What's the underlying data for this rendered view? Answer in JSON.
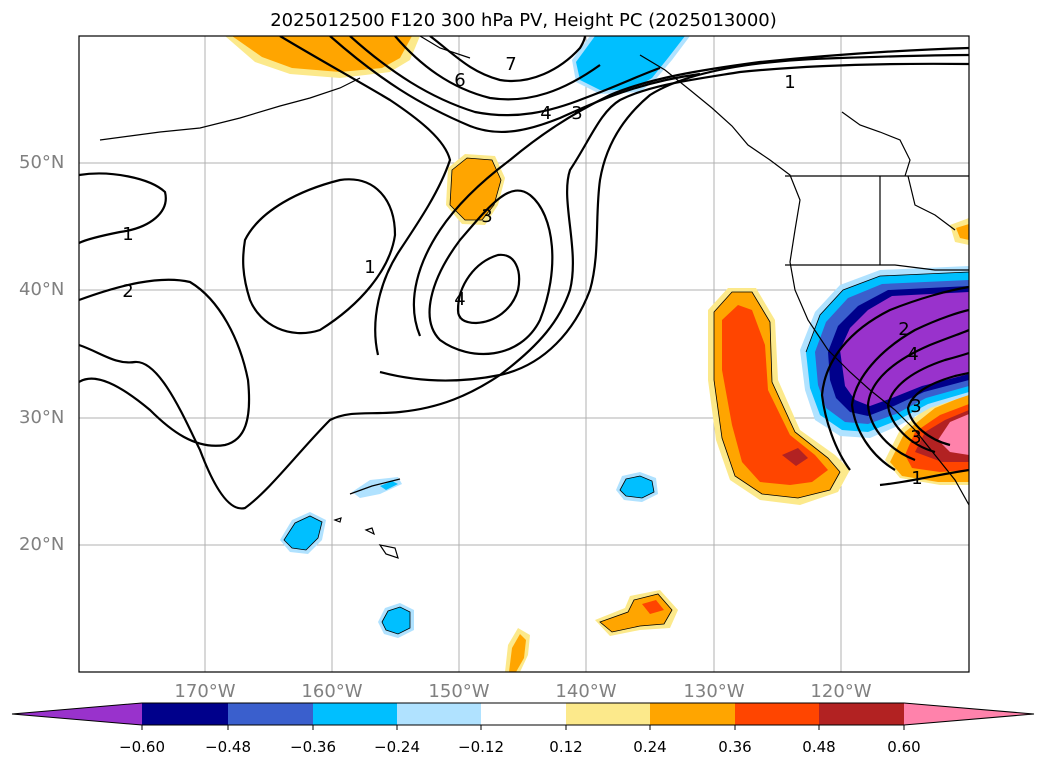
{
  "title": "2025012500 F120 300 hPa PV, Height PC (2025013000)",
  "lat_labels": [
    "50°N",
    "40°N",
    "30°N",
    "20°N"
  ],
  "lon_labels": [
    "170°W",
    "160°W",
    "150°W",
    "140°W",
    "130°W",
    "120°W"
  ],
  "colorbar": {
    "ticks": [
      "−0.60",
      "−0.48",
      "−0.36",
      "−0.24",
      "−0.12",
      "0.12",
      "0.24",
      "0.36",
      "0.48",
      "0.60"
    ],
    "colors": [
      "#9932cc",
      "#00008b",
      "#3a5fcd",
      "#00bfff",
      "#b0e2ff",
      "#ffffff",
      "#fce98b",
      "#ffa500",
      "#ff4500",
      "#b22222",
      "#ff82ab"
    ]
  },
  "contour_labels": [
    "6",
    "7",
    "4",
    "3",
    "1",
    "3",
    "1",
    "4",
    "1",
    "2",
    "2",
    "4",
    "3",
    "1",
    "3"
  ],
  "map_colors": {
    "neg_light": "#b0e2ff",
    "neg_mid": "#00bfff",
    "neg_blue": "#3a5fcd",
    "neg_navy": "#00008b",
    "neg_purple": "#9932cc",
    "pos_yellow": "#fce98b",
    "pos_orange": "#ffa500",
    "pos_red": "#ff4500",
    "pos_brown": "#b22222",
    "pos_pink": "#ff82ab"
  }
}
